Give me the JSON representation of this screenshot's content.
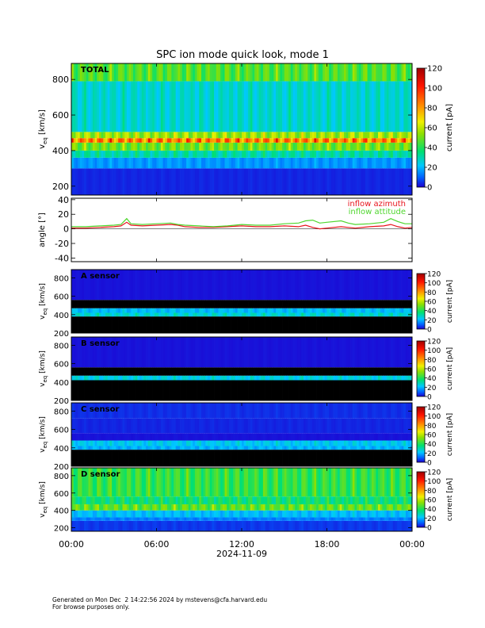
{
  "chart_data": {
    "title": "SPC ion mode quick look, mode 1",
    "type": "heatmap",
    "date": "2024-11-09",
    "x_ticks": [
      "00:00",
      "06:00",
      "12:00",
      "18:00",
      "00:00"
    ],
    "x_range_hours": [
      0,
      24
    ],
    "colorbar": {
      "label": "current [pA]",
      "range": [
        0,
        120
      ],
      "ticks": [
        0,
        20,
        40,
        60,
        80,
        100,
        120
      ],
      "colormap": "rainbow (blue-green-yellow-red)"
    },
    "panels": [
      {
        "name": "TOTAL",
        "type": "heatmap",
        "label": "TOTAL",
        "ylabel": "v_eq [km/s]",
        "ylim": [
          150,
          890
        ],
        "yticks": [
          200,
          400,
          600,
          800
        ],
        "bands": [
          {
            "v": [
              150,
              300
            ],
            "current": 4
          },
          {
            "v": [
              300,
              360
            ],
            "current": 17
          },
          {
            "v": [
              360,
              400
            ],
            "current": 32
          },
          {
            "v": [
              400,
              445
            ],
            "current": 52
          },
          {
            "v": [
              445,
              470
            ],
            "current": 88
          },
          {
            "v": [
              470,
              505
            ],
            "current": 58
          },
          {
            "v": [
              505,
              790
            ],
            "current": 28
          },
          {
            "v": [
              790,
              890
            ],
            "current": 48
          }
        ]
      },
      {
        "name": "angle",
        "type": "line",
        "ylabel": "angle [°]",
        "ylim": [
          -45,
          42
        ],
        "yticks": [
          -40,
          -20,
          0,
          20,
          40
        ],
        "series": [
          {
            "name": "inflow azimuth",
            "color": "#e8141e",
            "x": [
              0,
              1,
              2,
              3,
              3.5,
              3.9,
              4.2,
              5,
              6,
              7,
              7.5,
              8,
              9,
              10,
              11,
              12,
              13,
              14,
              15,
              16,
              16.5,
              17,
              17.5,
              18,
              19,
              19.5,
              20,
              21,
              22,
              22.5,
              23,
              23.5,
              24
            ],
            "y": [
              1,
              1,
              2,
              3,
              4,
              9,
              5,
              4,
              5,
              6,
              5,
              3,
              2,
              2,
              3,
              4,
              3,
              3,
              4,
              3,
              5,
              2,
              0,
              1,
              3,
              2,
              1,
              3,
              4,
              6,
              3,
              1,
              2
            ]
          },
          {
            "name": "inflow attitude",
            "color": "#4fd62e",
            "x": [
              0,
              1,
              2,
              3,
              3.5,
              3.9,
              4.2,
              5,
              6,
              7,
              7.5,
              8,
              9,
              10,
              11,
              12,
              13,
              14,
              15,
              16,
              16.5,
              17,
              17.5,
              18,
              19,
              19.5,
              20,
              21,
              22,
              22.5,
              23,
              23.5,
              24
            ],
            "y": [
              3,
              3,
              4,
              5,
              6,
              14,
              7,
              6,
              7,
              8,
              6,
              5,
              4,
              3,
              4,
              6,
              5,
              5,
              7,
              8,
              11,
              12,
              8,
              9,
              11,
              8,
              6,
              7,
              9,
              14,
              10,
              7,
              7
            ]
          }
        ]
      },
      {
        "name": "A sensor",
        "type": "heatmap",
        "label": "A sensor",
        "ylabel": "v_eq [km/s]",
        "ylim": [
          200,
          890
        ],
        "yticks": [
          200,
          400,
          600,
          800
        ],
        "bands": [
          {
            "v": [
              200,
              380
            ],
            "current": 0
          },
          {
            "v": [
              380,
              420
            ],
            "current": 28
          },
          {
            "v": [
              420,
              470
            ],
            "current": 22
          },
          {
            "v": [
              470,
              560
            ],
            "current": 0
          },
          {
            "v": [
              560,
              890
            ],
            "current": 2
          }
        ]
      },
      {
        "name": "B sensor",
        "type": "heatmap",
        "label": "B sensor",
        "ylabel": "v_eq [km/s]",
        "ylim": [
          200,
          890
        ],
        "yticks": [
          200,
          400,
          600,
          800
        ],
        "bands": [
          {
            "v": [
              200,
              420
            ],
            "current": 0
          },
          {
            "v": [
              420,
              470
            ],
            "current": 26
          },
          {
            "v": [
              470,
              560
            ],
            "current": 0
          },
          {
            "v": [
              560,
              890
            ],
            "current": 2
          }
        ]
      },
      {
        "name": "C sensor",
        "type": "heatmap",
        "label": "C sensor",
        "ylabel": "v_eq [km/s]",
        "ylim": [
          200,
          890
        ],
        "yticks": [
          200,
          400,
          600,
          800
        ],
        "bands": [
          {
            "v": [
              200,
              380
            ],
            "current": 0
          },
          {
            "v": [
              380,
              420
            ],
            "current": 20
          },
          {
            "v": [
              420,
              480
            ],
            "current": 24
          },
          {
            "v": [
              480,
              560
            ],
            "current": 2
          },
          {
            "v": [
              560,
              720
            ],
            "current": 4
          },
          {
            "v": [
              720,
              890
            ],
            "current": 5
          }
        ]
      },
      {
        "name": "D sensor",
        "type": "heatmap",
        "label": "D sensor",
        "ylabel": "v_eq [km/s]",
        "ylim": [
          160,
          890
        ],
        "yticks": [
          200,
          400,
          600,
          800
        ],
        "bands": [
          {
            "v": [
              160,
              280
            ],
            "current": 6
          },
          {
            "v": [
              280,
              320
            ],
            "current": 14
          },
          {
            "v": [
              320,
              400
            ],
            "current": 22
          },
          {
            "v": [
              400,
              470
            ],
            "current": 50
          },
          {
            "v": [
              470,
              560
            ],
            "current": 38
          },
          {
            "v": [
              560,
              890
            ],
            "current": 44
          }
        ]
      }
    ]
  },
  "footer": {
    "line1": "Generated on Mon Dec  2 14:22:56 2024 by mstevens@cfa.harvard.edu",
    "line2": "For browse purposes only."
  }
}
